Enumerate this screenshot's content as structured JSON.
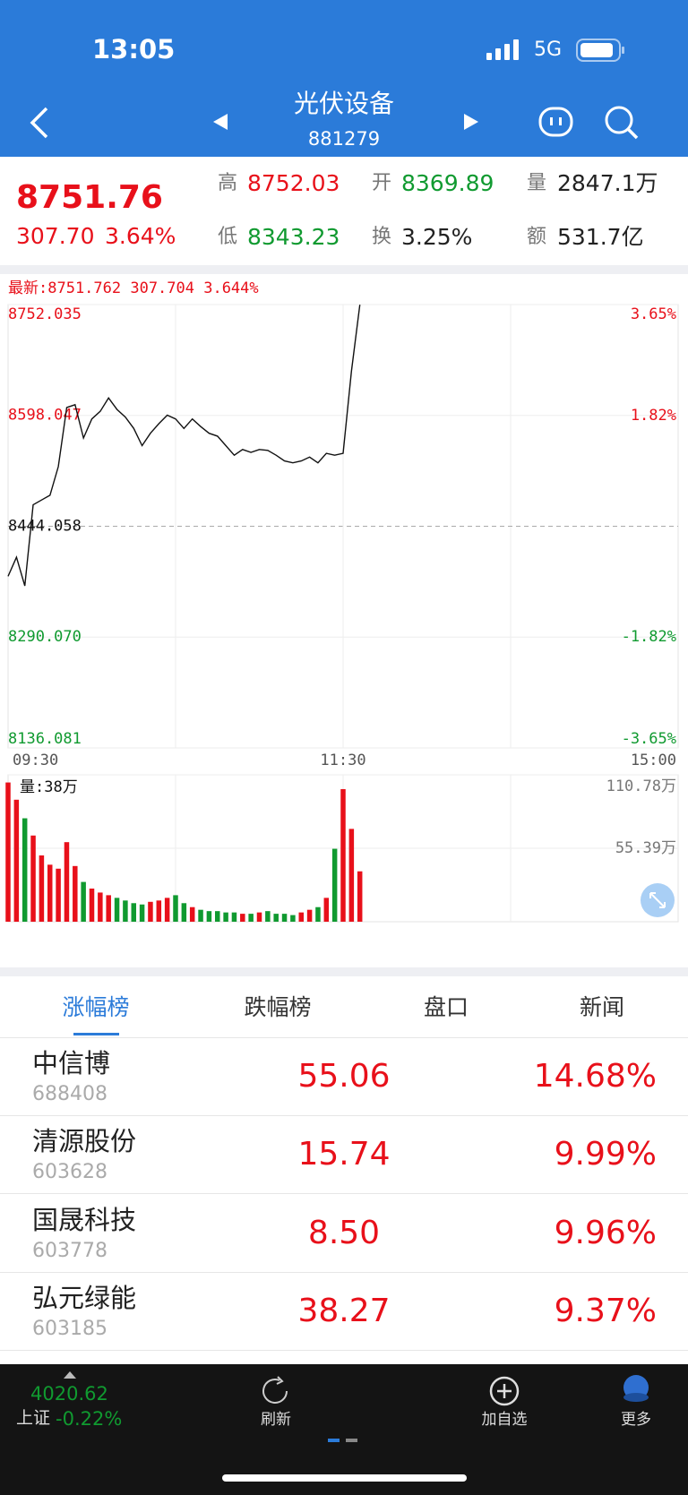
{
  "status_bar": {
    "time": "13:05",
    "network": "5G"
  },
  "nav": {
    "title": "光伏设备",
    "code": "881279"
  },
  "quote": {
    "price": "8751.76",
    "change": "307.70",
    "change_pct": "3.64%",
    "fields": [
      {
        "label": "高",
        "value": "8752.03"
      },
      {
        "label": "开",
        "value": "8369.89"
      },
      {
        "label": "量",
        "value": "2847.1万"
      },
      {
        "label": "低",
        "value": "8343.23"
      },
      {
        "label": "换",
        "value": "3.25%"
      },
      {
        "label": "额",
        "value": "531.7亿"
      }
    ]
  },
  "chart_data": [
    {
      "type": "line",
      "annotation": "最新:8751.762 307.704 3.644%",
      "x": [
        0,
        3,
        6,
        9,
        12,
        15,
        18,
        21,
        24,
        27,
        30,
        33,
        36,
        39,
        42,
        45,
        48,
        51,
        54,
        57,
        60,
        63,
        66,
        69,
        72,
        75,
        78,
        81,
        84,
        87,
        90,
        93,
        96,
        99,
        102,
        105,
        108,
        111,
        114,
        117,
        120,
        123,
        126
      ],
      "values": [
        8374.5,
        8401.0,
        8361.3,
        8473.9,
        8480.5,
        8487.1,
        8526.9,
        8609.0,
        8612.9,
        8566.6,
        8593.1,
        8603.7,
        8622.2,
        8606.3,
        8595.7,
        8579.9,
        8556.0,
        8573.2,
        8586.5,
        8598.4,
        8593.1,
        8579.9,
        8593.1,
        8582.5,
        8573.2,
        8569.2,
        8556.0,
        8542.7,
        8550.7,
        8546.7,
        8550.7,
        8549.4,
        8542.7,
        8534.8,
        8532.1,
        8534.8,
        8540.1,
        8532.1,
        8545.4,
        8542.7,
        8545.4,
        8659.3,
        8751.762
      ],
      "color": "#111111",
      "xlim": [
        0,
        240
      ],
      "xticks": [
        {
          "value": 0,
          "label": "09:30"
        },
        {
          "value": 120,
          "label": "11:30"
        },
        {
          "value": 240,
          "label": "15:00"
        }
      ],
      "ylim": [
        8136.081,
        8752.035
      ],
      "yticks": [
        8136.081,
        {
          "value": 8290.07,
          "label": "8290.070"
        },
        8444.058,
        8598.047,
        8752.035
      ],
      "y2lim": [
        -3.65,
        3.65
      ],
      "y2ticks": [
        {
          "value": -3.65,
          "label": "-3.65%"
        },
        {
          "value": -1.82,
          "label": "-1.82%"
        },
        {
          "value": 1.82,
          "label": "1.82%"
        },
        {
          "value": 3.65,
          "label": "3.65%"
        }
      ]
    },
    {
      "type": "bar",
      "label": "量:38万",
      "values": [
        105,
        92,
        78,
        65,
        50,
        43,
        40,
        60,
        42,
        30,
        25,
        22,
        20,
        18,
        16,
        14,
        13,
        15,
        16,
        18,
        20,
        14,
        11,
        9,
        8,
        8,
        7,
        7,
        6,
        6,
        7,
        8,
        6,
        6,
        5,
        7,
        9,
        11,
        18,
        55,
        100,
        70,
        38
      ],
      "up_color": "#e8101a",
      "down_color": "#109a30",
      "ylim": [
        0,
        110.78
      ],
      "yticks": [
        {
          "value": 55.39,
          "label": "55.39万"
        },
        {
          "value": 110.78,
          "label": "110.78万"
        }
      ]
    }
  ],
  "tabs": [
    "涨幅榜",
    "跌幅榜",
    "盘口",
    "新闻"
  ],
  "rows": [
    {
      "name": "中信博",
      "code": "688408",
      "price": "55.06",
      "pct": "14.68%"
    },
    {
      "name": "清源股份",
      "code": "603628",
      "price": "15.74",
      "pct": "9.99%"
    },
    {
      "name": "国晟科技",
      "code": "603778",
      "price": "8.50",
      "pct": "9.96%"
    },
    {
      "name": "弘元绿能",
      "code": "603185",
      "price": "38.27",
      "pct": "9.37%"
    }
  ],
  "footer": {
    "index_value": "4020.62",
    "index_name": "上证",
    "index_change": "-0.22%",
    "buttons": [
      "刷新",
      "加自选",
      "更多"
    ]
  }
}
